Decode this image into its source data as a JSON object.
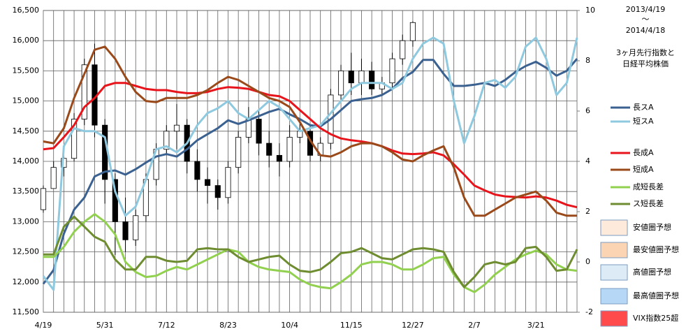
{
  "chart_data": {
    "type": "line",
    "note_lines": [
      "2013/4/19",
      "～",
      "2014/4/18",
      "3ヶ月先行指数と",
      "日経平均株価"
    ],
    "categories": [
      "4/19",
      null,
      null,
      null,
      null,
      null,
      "5/31",
      null,
      null,
      null,
      null,
      null,
      "7/12",
      null,
      null,
      null,
      null,
      null,
      "8/23",
      null,
      null,
      null,
      null,
      null,
      "10/4",
      null,
      null,
      null,
      null,
      null,
      "11/15",
      null,
      null,
      null,
      null,
      null,
      "12/27",
      null,
      null,
      null,
      null,
      null,
      "2/7",
      null,
      null,
      null,
      null,
      null,
      "3/21",
      null,
      null,
      null,
      null
    ],
    "ylim": [
      11500,
      16500
    ],
    "yticks": [
      {
        "value": 11500,
        "label": "11,500"
      },
      {
        "value": 12000,
        "label": "12,000"
      },
      {
        "value": 12500,
        "label": "12,500"
      },
      {
        "value": 13000,
        "label": "13,000"
      },
      {
        "value": 13500,
        "label": "13,500"
      },
      {
        "value": 14000,
        "label": "14,000"
      },
      {
        "value": 14500,
        "label": "14,500"
      },
      {
        "value": 15000,
        "label": "15,000"
      },
      {
        "value": 15500,
        "label": "15,500"
      },
      {
        "value": 16000,
        "label": "16,000"
      },
      {
        "value": 16500,
        "label": "16,500"
      }
    ],
    "y2lim": [
      -2,
      10
    ],
    "y2ticks": [
      -2,
      0,
      2,
      4,
      6,
      8,
      10
    ],
    "grid": true,
    "candles": {
      "up_color": "#ffffff",
      "down_color": "#000000",
      "open": [
        13200,
        13550,
        13900,
        14050,
        14700,
        15600,
        14600,
        13700,
        13000,
        12700,
        13100,
        13700,
        14200,
        14500,
        14600,
        14000,
        13700,
        13600,
        13400,
        13900,
        14400,
        14700,
        14300,
        14100,
        14000,
        14400,
        14500,
        14100,
        14300,
        15100,
        15500,
        15300,
        15500,
        15200,
        15300,
        15700,
        16000
      ],
      "high": [
        13600,
        14000,
        14150,
        14800,
        15700,
        15950,
        14700,
        13800,
        13400,
        13200,
        13800,
        14300,
        14600,
        14950,
        14700,
        14200,
        13900,
        13700,
        14000,
        14500,
        14900,
        14850,
        14500,
        14300,
        14600,
        14700,
        14600,
        14400,
        15200,
        15600,
        15800,
        15700,
        15650,
        15400,
        15800,
        16100,
        16320
      ],
      "low": [
        13150,
        13550,
        13750,
        14000,
        14600,
        14400,
        13300,
        12450,
        12500,
        12600,
        13000,
        13600,
        14100,
        14200,
        13800,
        13500,
        13300,
        13200,
        13300,
        13800,
        14300,
        14100,
        13900,
        13750,
        13900,
        14300,
        14000,
        14000,
        14200,
        15000,
        15100,
        15100,
        15100,
        15100,
        15200,
        15600,
        15900
      ],
      "close": [
        13550,
        13900,
        14050,
        14700,
        15600,
        14600,
        13700,
        13000,
        12700,
        13100,
        13700,
        14200,
        14500,
        14600,
        14000,
        13700,
        13600,
        13400,
        13900,
        14400,
        14700,
        14300,
        14100,
        14000,
        14400,
        14500,
        14100,
        14300,
        15100,
        15500,
        15300,
        15500,
        15200,
        15300,
        15700,
        16000,
        16300
      ]
    },
    "series": [
      {
        "name": "長スA",
        "color": "#3b6190",
        "values": [
          11970,
          12200,
          12800,
          13200,
          13400,
          13750,
          13830,
          13850,
          13780,
          13870,
          13980,
          14080,
          14120,
          14080,
          14200,
          14350,
          14450,
          14550,
          14680,
          14620,
          14680,
          14750,
          14820,
          14870,
          14780,
          14700,
          14600,
          14580,
          14700,
          14850,
          15000,
          15030,
          15050,
          15100,
          15200,
          15380,
          15480,
          15680,
          15680,
          15450,
          15250,
          15250,
          15270,
          15300,
          15250,
          15350,
          15480,
          15580,
          15650,
          15550,
          15420,
          15500,
          15700
        ]
      },
      {
        "name": "短スA",
        "color": "#8fc9df",
        "values": [
          12100,
          11870,
          14250,
          14550,
          14500,
          14500,
          14400,
          13500,
          13100,
          13250,
          13700,
          14200,
          14250,
          14150,
          14300,
          14600,
          14800,
          14880,
          15000,
          14800,
          14700,
          14850,
          15000,
          14900,
          14700,
          14500,
          14550,
          14600,
          14800,
          15000,
          15200,
          15300,
          15300,
          15300,
          15200,
          15300,
          15700,
          15950,
          16050,
          15950,
          15000,
          14300,
          14750,
          15300,
          15350,
          15220,
          15400,
          15900,
          16050,
          15700,
          15100,
          15300,
          16050
        ]
      },
      {
        "name": "長成A",
        "color": "#e8141b",
        "values": [
          14200,
          14220,
          14400,
          14600,
          14900,
          15050,
          15250,
          15300,
          15300,
          15250,
          15200,
          15180,
          15180,
          15150,
          15130,
          15130,
          15150,
          15200,
          15230,
          15220,
          15200,
          15150,
          15100,
          15080,
          15000,
          14850,
          14700,
          14550,
          14450,
          14380,
          14350,
          14330,
          14300,
          14250,
          14180,
          14130,
          14120,
          14130,
          14150,
          14100,
          13950,
          13780,
          13600,
          13520,
          13450,
          13420,
          13410,
          13400,
          13420,
          13400,
          13350,
          13280,
          13240
        ]
      },
      {
        "name": "短成A",
        "color": "#9a4a1a",
        "values": [
          14330,
          14300,
          14550,
          15050,
          15450,
          15850,
          15900,
          15700,
          15400,
          15150,
          15000,
          14980,
          15050,
          15050,
          15050,
          15100,
          15180,
          15300,
          15400,
          15350,
          15250,
          15150,
          15050,
          15000,
          14900,
          14650,
          14350,
          14100,
          14080,
          14150,
          14250,
          14300,
          14300,
          14250,
          14150,
          14030,
          14000,
          14100,
          14180,
          14250,
          13900,
          13400,
          13100,
          13100,
          13200,
          13300,
          13400,
          13450,
          13500,
          13350,
          13150,
          13100,
          13100
        ]
      },
      {
        "name": "成短長差",
        "color": "#92d050",
        "axis": "y2",
        "values": [
          0.2,
          0.2,
          0.6,
          1.2,
          1.6,
          1.9,
          1.6,
          1.1,
          0.0,
          -0.4,
          -0.6,
          -0.55,
          -0.35,
          -0.2,
          -0.3,
          -0.1,
          0.1,
          0.3,
          0.5,
          0.4,
          0.0,
          -0.2,
          -0.3,
          -0.35,
          -0.4,
          -0.7,
          -0.9,
          -1.0,
          -1.05,
          -0.8,
          -0.5,
          -0.1,
          0.0,
          0.0,
          -0.1,
          -0.3,
          -0.3,
          -0.1,
          0.15,
          0.2,
          -0.5,
          -1.0,
          -1.2,
          -0.9,
          -0.5,
          -0.2,
          0.1,
          0.3,
          0.45,
          0.3,
          -0.1,
          -0.3,
          -0.35
        ]
      },
      {
        "name": "ス短長差",
        "color": "#6e8c30",
        "axis": "y2",
        "values": [
          0.3,
          0.3,
          1.4,
          1.8,
          1.4,
          1.0,
          0.8,
          0.1,
          -0.3,
          -0.3,
          0.2,
          0.2,
          0.05,
          0.0,
          0.05,
          0.5,
          0.55,
          0.5,
          0.5,
          0.2,
          0.0,
          0.1,
          0.2,
          0.25,
          -0.1,
          -0.35,
          -0.4,
          -0.3,
          0.0,
          0.35,
          0.4,
          0.55,
          0.35,
          0.15,
          0.1,
          0.3,
          0.5,
          0.55,
          0.5,
          0.4,
          -0.4,
          -1.0,
          -0.6,
          -0.1,
          0.0,
          -0.1,
          0.0,
          0.55,
          0.6,
          0.2,
          -0.35,
          -0.3,
          0.5
        ]
      }
    ],
    "legend_boxes": [
      {
        "name": "安値圏予想",
        "color": "#fdeadb"
      },
      {
        "name": "最安値圏予想",
        "color": "#fbd4b4"
      },
      {
        "name": "高値圏予想",
        "color": "#ddebf7"
      },
      {
        "name": "最高値圏予想",
        "color": "#b6d7f5"
      },
      {
        "name": "VIX指数25超",
        "color": "#ff4b4b"
      }
    ]
  }
}
